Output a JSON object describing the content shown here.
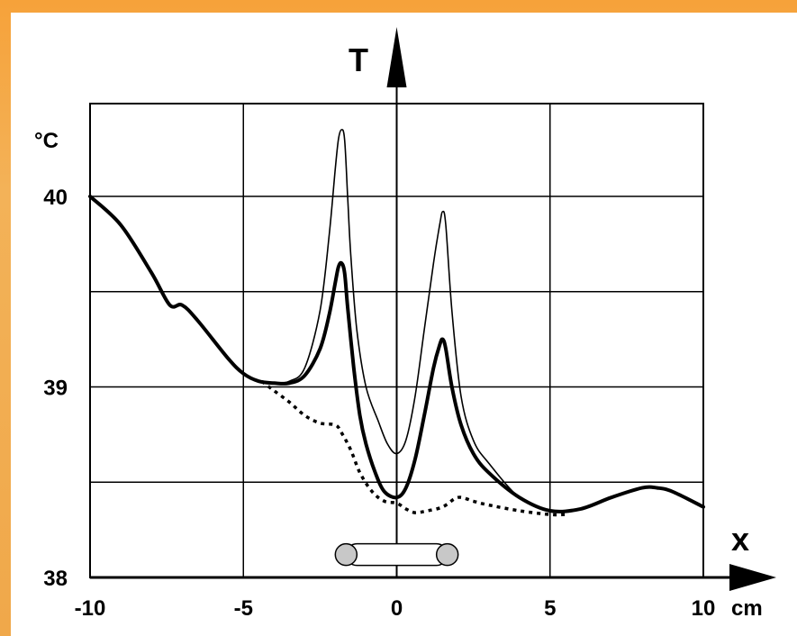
{
  "chart_data": {
    "type": "line",
    "x_axis_label": "x",
    "y_axis_label": "T",
    "x_unit": "cm",
    "y_unit": "°C",
    "xlim": [
      -10,
      10
    ],
    "ylim": [
      38,
      40.5
    ],
    "x_ticks": [
      "-10",
      "-5",
      "0",
      "5",
      "10"
    ],
    "y_ticks": [
      "38",
      "39",
      "40"
    ],
    "grid": true,
    "series": [
      {
        "style": "thin-solid",
        "color": "#000000",
        "x": [
          -10,
          -9,
          -8,
          -7.4,
          -7.0,
          -6.5,
          -5.5,
          -5,
          -4.5,
          -4,
          -3.5,
          -3.0,
          -2.5,
          -2.2,
          -2.0,
          -1.9,
          -1.8,
          -1.7,
          -1.6,
          -1.5,
          -1.3,
          -1.0,
          -0.6,
          -0.3,
          0,
          0.3,
          0.6,
          0.9,
          1.2,
          1.4,
          1.5,
          1.6,
          1.8,
          2.1,
          2.5,
          3,
          4,
          5,
          6,
          7,
          8,
          8.5,
          9,
          10
        ],
        "y": [
          40.0,
          39.85,
          39.6,
          39.43,
          39.43,
          39.35,
          39.15,
          39.07,
          39.03,
          39.02,
          39.03,
          39.1,
          39.4,
          39.8,
          40.15,
          40.3,
          40.35,
          40.3,
          40.0,
          39.7,
          39.3,
          39.0,
          38.82,
          38.7,
          38.65,
          38.72,
          38.95,
          39.3,
          39.65,
          39.85,
          39.92,
          39.85,
          39.4,
          38.95,
          38.72,
          38.6,
          38.42,
          38.35,
          38.36,
          38.42,
          38.47,
          38.47,
          38.45,
          38.37
        ]
      },
      {
        "style": "thick-solid",
        "color": "#000000",
        "x": [
          -10,
          -9,
          -8,
          -7.4,
          -7.0,
          -6.5,
          -5.5,
          -5,
          -4.5,
          -4,
          -3.5,
          -3.0,
          -2.5,
          -2.2,
          -2.0,
          -1.9,
          -1.8,
          -1.7,
          -1.6,
          -1.4,
          -1.2,
          -1.0,
          -0.7,
          -0.4,
          0,
          0.3,
          0.6,
          0.9,
          1.2,
          1.4,
          1.5,
          1.6,
          1.8,
          2.1,
          2.5,
          3,
          4,
          5,
          6,
          7,
          8,
          8.5,
          9,
          10
        ],
        "y": [
          40.0,
          39.85,
          39.6,
          39.43,
          39.43,
          39.35,
          39.15,
          39.07,
          39.03,
          39.02,
          39.02,
          39.06,
          39.2,
          39.38,
          39.55,
          39.63,
          39.65,
          39.6,
          39.42,
          39.1,
          38.85,
          38.7,
          38.55,
          38.45,
          38.42,
          38.47,
          38.62,
          38.85,
          39.1,
          39.22,
          39.25,
          39.2,
          39.0,
          38.8,
          38.65,
          38.55,
          38.42,
          38.35,
          38.36,
          38.42,
          38.47,
          38.47,
          38.45,
          38.37
        ]
      },
      {
        "style": "dotted",
        "color": "#000000",
        "x": [
          -4.4,
          -4,
          -3.5,
          -3.0,
          -2.5,
          -2.0,
          -1.8,
          -1.5,
          -1.2,
          -0.8,
          -0.4,
          0,
          0.3,
          0.6,
          1.0,
          1.5,
          2.0,
          2.5,
          3.0,
          4.0,
          5.0,
          5.5
        ],
        "y": [
          39.03,
          38.98,
          38.92,
          38.85,
          38.81,
          38.8,
          38.76,
          38.67,
          38.55,
          38.45,
          38.4,
          38.39,
          38.36,
          38.34,
          38.35,
          38.37,
          38.42,
          38.4,
          38.38,
          38.35,
          38.33,
          38.33
        ]
      }
    ],
    "annotations": [
      {
        "type": "device",
        "x_start": -1.65,
        "x_end": 1.65,
        "y": 38.12
      }
    ]
  }
}
